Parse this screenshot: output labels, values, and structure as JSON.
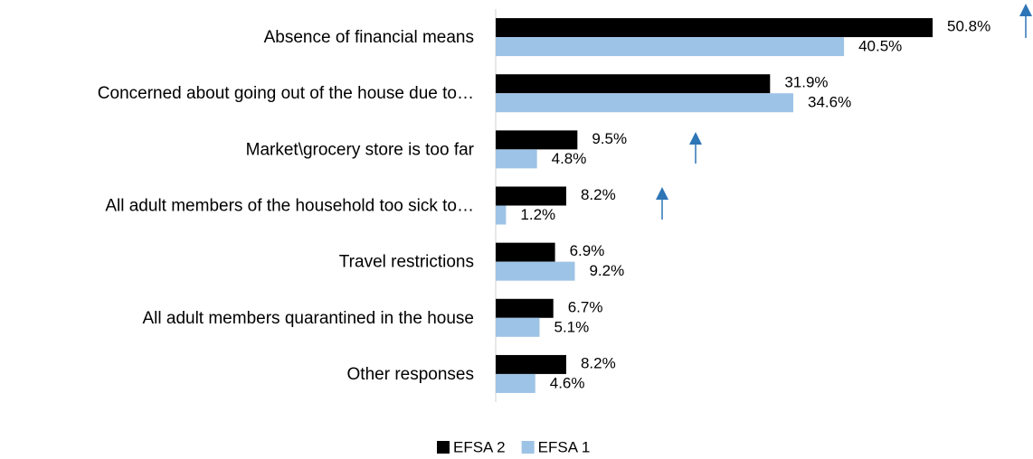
{
  "chart_data": {
    "type": "hbar",
    "categories": [
      "Absence of financial means",
      "Concerned about going out of the house due to…",
      "Market\\grocery store is too far",
      "All adult members of the household too sick to…",
      "Travel restrictions",
      "All adult members quarantined in the house",
      "Other responses"
    ],
    "series": [
      {
        "name": "EFSA 2",
        "color": "#000000",
        "values": [
          50.8,
          31.9,
          9.5,
          8.2,
          6.9,
          6.7,
          8.2
        ],
        "value_labels": [
          "50.8%",
          "31.9%",
          "9.5%",
          "8.2%",
          "6.9%",
          "6.7%",
          "8.2%"
        ]
      },
      {
        "name": "EFSA 1",
        "color": "#9dc3e6",
        "values": [
          40.5,
          34.6,
          4.8,
          1.2,
          9.2,
          5.1,
          4.6
        ],
        "value_labels": [
          "40.5%",
          "34.6%",
          "4.8%",
          "1.2%",
          "9.2%",
          "5.1%",
          "4.6%"
        ]
      }
    ],
    "xlim": [
      0,
      60
    ],
    "legend": "bottom"
  }
}
